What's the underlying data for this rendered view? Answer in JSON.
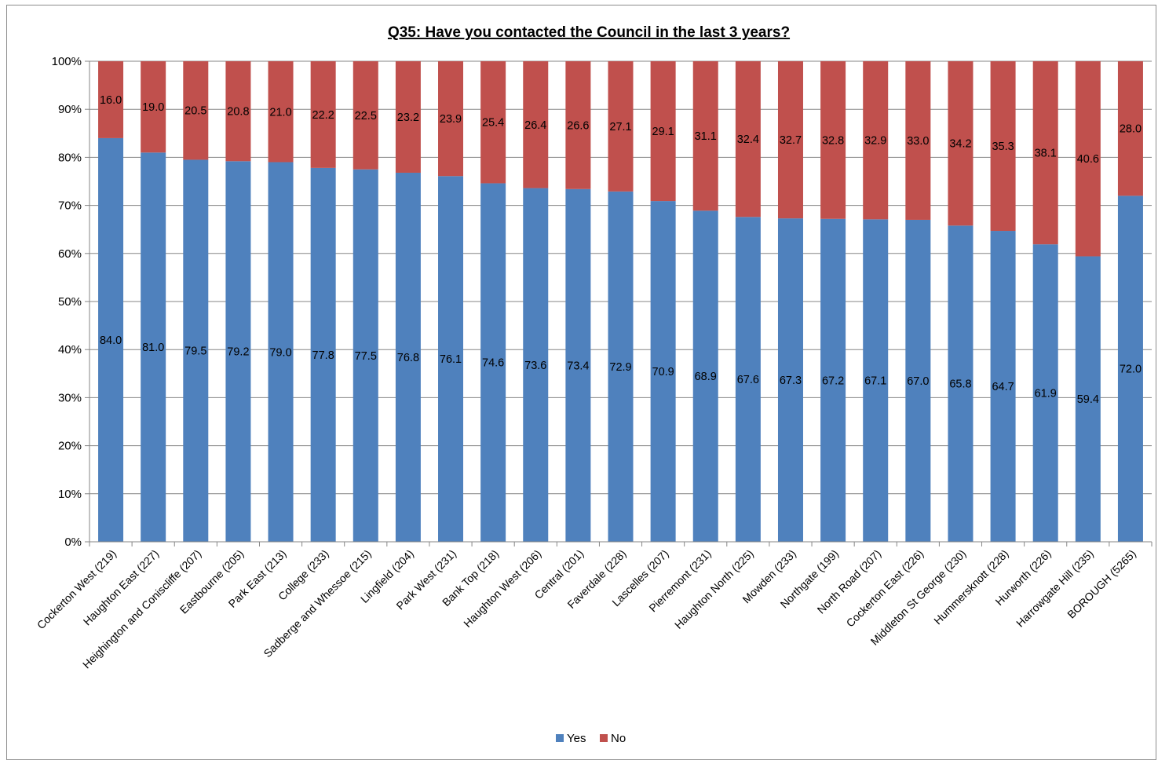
{
  "chart_data": {
    "type": "bar",
    "stacked": true,
    "title": "Q35: Have you contacted the Council in the last 3 years?",
    "xlabel": "",
    "ylabel": "",
    "ylim": [
      0,
      100
    ],
    "yticks": [
      "0%",
      "10%",
      "20%",
      "30%",
      "40%",
      "50%",
      "60%",
      "70%",
      "80%",
      "90%",
      "100%"
    ],
    "grid": true,
    "legend_position": "bottom",
    "categories": [
      "Cockerton West (219)",
      "Haughton East (227)",
      "Heighington and Coniscliffe (207)",
      "Eastbourne (205)",
      "Park East (213)",
      "College (233)",
      "Sadberge and Whessoe (215)",
      "Lingfield (204)",
      "Park West (231)",
      "Bank Top (218)",
      "Haughton West (206)",
      "Central (201)",
      "Faverdale (228)",
      "Lascelles (207)",
      "Pierremont (231)",
      "Haughton North (225)",
      "Mowden (233)",
      "Northgate (199)",
      "North Road (207)",
      "Cockerton East (226)",
      "Middleton St George (230)",
      "Hummersknott (228)",
      "Hurworth (226)",
      "Harrowgate Hill (235)",
      "BOROUGH (5265)"
    ],
    "series": [
      {
        "name": "Yes",
        "color": "#4f81bd",
        "values": [
          84.0,
          81.0,
          79.5,
          79.2,
          79.0,
          77.8,
          77.5,
          76.8,
          76.1,
          74.6,
          73.6,
          73.4,
          72.9,
          70.9,
          68.9,
          67.6,
          67.3,
          67.2,
          67.1,
          67.0,
          65.8,
          64.7,
          61.9,
          59.4,
          72.0
        ],
        "labels": [
          "84.0",
          "81.0",
          "79.5",
          "79.2",
          "79.0",
          "77.8",
          "77.5",
          "76.8",
          "76.1",
          "74.6",
          "73.6",
          "73.4",
          "72.9",
          "70.9",
          "68.9",
          "67.6",
          "67.3",
          "67.2",
          "67.1",
          "67.0",
          "65.8",
          "64.7",
          "61.9",
          "59.4",
          "72.0"
        ]
      },
      {
        "name": "No",
        "color": "#c0504d",
        "values": [
          16.0,
          19.0,
          20.5,
          20.8,
          21.0,
          22.2,
          22.5,
          23.2,
          23.9,
          25.4,
          26.4,
          26.6,
          27.1,
          29.1,
          31.1,
          32.4,
          32.7,
          32.8,
          32.9,
          33.0,
          34.2,
          35.3,
          38.1,
          40.6,
          28.0
        ],
        "labels": [
          "16.0",
          "19.0",
          "20.5",
          "20.8",
          "21.0",
          "22.2",
          "22.5",
          "23.2",
          "23.9",
          "25.4",
          "26.4",
          "26.6",
          "27.1",
          "29.1",
          "31.1",
          "32.4",
          "32.7",
          "32.8",
          "32.9",
          "33.0",
          "34.2",
          "35.3",
          "38.1",
          "40.6",
          "28.0"
        ]
      }
    ]
  }
}
